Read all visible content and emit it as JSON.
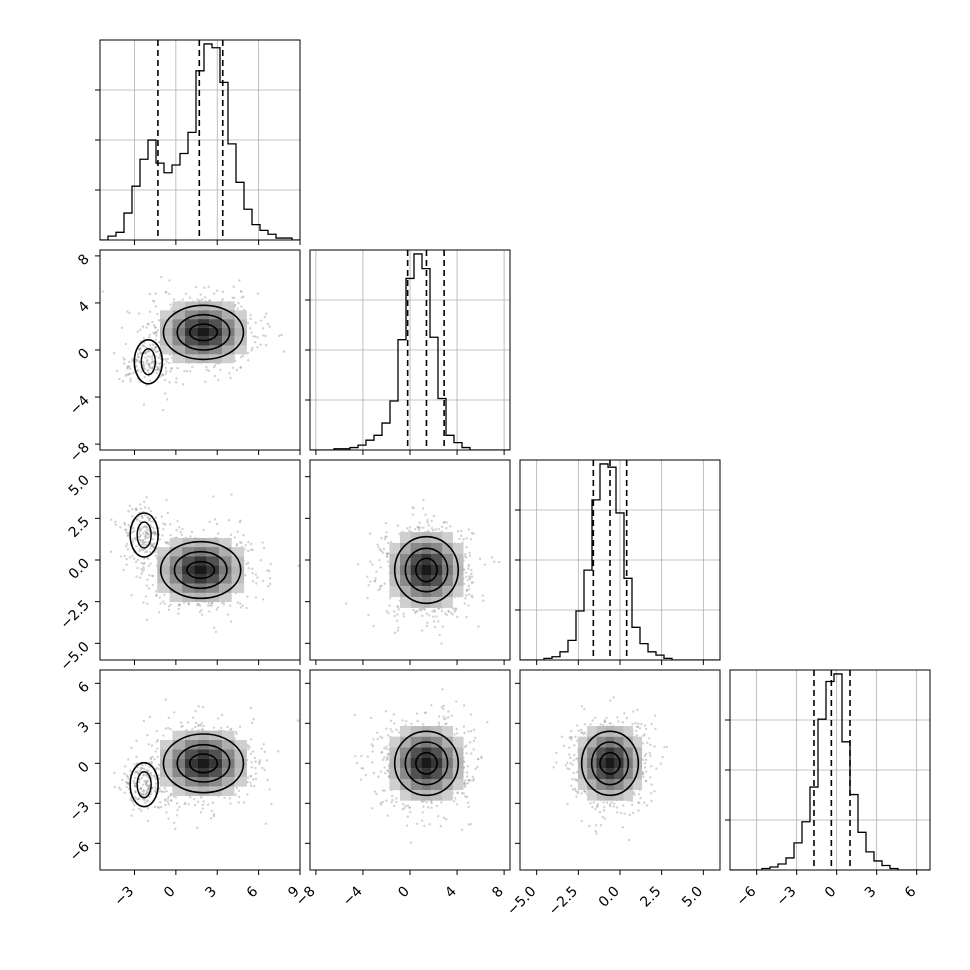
{
  "chart_data": {
    "type": "corner",
    "grid": true,
    "legend": "none",
    "colors": {
      "points": "#9a9a9a",
      "lines": "#000000",
      "grid": "#b0b0b0",
      "density_dark": "#111111"
    },
    "params": [
      {
        "range": [
          -5.5,
          9
        ],
        "ticks": [
          -3,
          0,
          3,
          6,
          9
        ],
        "ticklabels": [
          "−3",
          "0",
          "3",
          "6",
          "9"
        ],
        "center": 2.0,
        "quantiles": [
          -1.3,
          1.7,
          3.4
        ]
      },
      {
        "range": [
          -8.5,
          8.5
        ],
        "ticks": [
          -8,
          -4,
          0,
          4,
          8
        ],
        "ticklabels": [
          "−8",
          "−4",
          "0",
          "4",
          "8"
        ],
        "center": 1.4,
        "quantiles": [
          -0.2,
          1.4,
          2.9
        ]
      },
      {
        "range": [
          -6,
          6
        ],
        "ticks": [
          -5,
          -2.5,
          0,
          2.5,
          5
        ],
        "ticklabels": [
          "−5.0",
          "−2.5",
          "0.0",
          "2.5",
          "5.0"
        ],
        "center": -0.6,
        "quantiles": [
          -1.6,
          -0.6,
          0.4
        ]
      },
      {
        "range": [
          -8,
          7
        ],
        "ticks": [
          -6,
          -3,
          0,
          3,
          6
        ],
        "ticklabels": [
          "−6",
          "−3",
          "0",
          "3",
          "6"
        ],
        "center": 0.0,
        "quantiles": [
          -1.7,
          -0.4,
          1.0
        ]
      }
    ],
    "histograms": [
      {
        "edges_range": [
          -5.5,
          9
        ],
        "counts": [
          0,
          2,
          4,
          14,
          28,
          42,
          52,
          40,
          35,
          39,
          45,
          56,
          88,
          102,
          100,
          82,
          50,
          30,
          16,
          8,
          5,
          3,
          1,
          1,
          0
        ]
      },
      {
        "edges_range": [
          -8.5,
          8.5
        ],
        "counts": [
          0,
          0,
          0,
          1,
          1,
          2,
          4,
          8,
          12,
          22,
          40,
          90,
          140,
          160,
          148,
          92,
          42,
          12,
          6,
          2,
          0,
          0,
          0,
          0,
          0
        ]
      },
      {
        "edges_range": [
          -6,
          6
        ],
        "counts": [
          0,
          0,
          0,
          1,
          2,
          5,
          12,
          30,
          55,
          98,
          120,
          118,
          90,
          50,
          20,
          10,
          5,
          3,
          1,
          0,
          0,
          0,
          0,
          0,
          0
        ]
      },
      {
        "edges_range": [
          -8,
          7
        ],
        "counts": [
          0,
          0,
          0,
          0,
          1,
          2,
          4,
          8,
          18,
          32,
          55,
          100,
          125,
          130,
          85,
          50,
          25,
          12,
          6,
          3,
          1,
          0,
          0,
          0,
          0
        ]
      }
    ],
    "pairs": [
      {
        "x": 0,
        "y": 1,
        "center": [
          2.0,
          1.5
        ],
        "spread": [
          1.8,
          1.5
        ],
        "tail": [
          -2.0,
          -1.0
        ],
        "contours": [
          [
            1.0,
            0.7
          ],
          [
            1.9,
            1.5
          ],
          [
            2.9,
            2.3
          ]
        ]
      },
      {
        "x": 0,
        "y": 2,
        "center": [
          1.8,
          -0.6
        ],
        "spread": [
          1.8,
          1.1
        ],
        "tail": [
          -2.3,
          1.5
        ],
        "contours": [
          [
            1.0,
            0.5
          ],
          [
            1.9,
            1.1
          ],
          [
            2.9,
            1.7
          ]
        ]
      },
      {
        "x": 0,
        "y": 3,
        "center": [
          2.0,
          0.0
        ],
        "spread": [
          1.8,
          1.4
        ],
        "tail": [
          -2.3,
          -1.6
        ],
        "contours": [
          [
            1.0,
            0.7
          ],
          [
            1.9,
            1.4
          ],
          [
            2.9,
            2.2
          ]
        ]
      },
      {
        "x": 1,
        "y": 2,
        "center": [
          1.4,
          -0.6
        ],
        "spread": [
          1.8,
          1.3
        ],
        "tail": null,
        "contours": [
          [
            0.9,
            0.7
          ],
          [
            1.8,
            1.3
          ],
          [
            2.7,
            2.0
          ]
        ]
      },
      {
        "x": 1,
        "y": 3,
        "center": [
          1.4,
          0.0
        ],
        "spread": [
          1.8,
          1.6
        ],
        "tail": null,
        "contours": [
          [
            0.9,
            0.8
          ],
          [
            1.8,
            1.6
          ],
          [
            2.7,
            2.4
          ]
        ]
      },
      {
        "x": 2,
        "y": 3,
        "center": [
          -0.6,
          0.0
        ],
        "spread": [
          1.1,
          1.6
        ],
        "tail": null,
        "contours": [
          [
            0.6,
            0.8
          ],
          [
            1.1,
            1.6
          ],
          [
            1.7,
            2.4
          ]
        ]
      }
    ]
  }
}
